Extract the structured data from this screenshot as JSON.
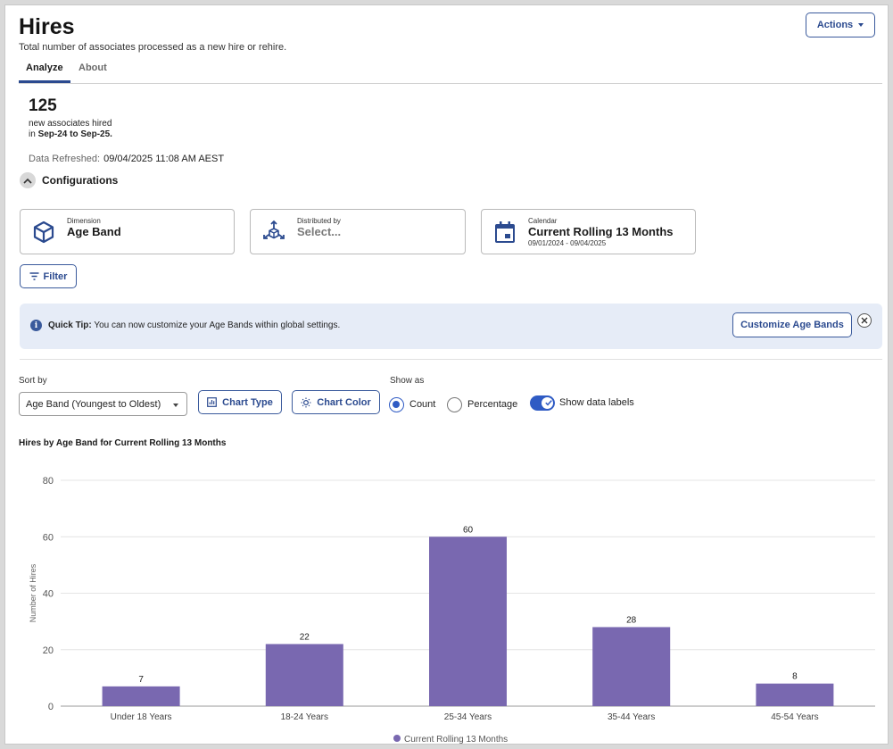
{
  "header": {
    "title": "Hires",
    "subtitle": "Total number of associates processed as a new hire or rehire.",
    "actions_label": "Actions"
  },
  "tabs": [
    {
      "label": "Analyze",
      "active": true
    },
    {
      "label": "About",
      "active": false
    }
  ],
  "summary": {
    "count": "125",
    "line1": "new associates hired",
    "line2_prefix": "in ",
    "line2_range": "Sep-24 to Sep-25."
  },
  "refresh": {
    "label": "Data Refreshed:",
    "value": "09/04/2025 11:08 AM AEST"
  },
  "configurations": {
    "label": "Configurations",
    "dimension": {
      "small_label": "Dimension",
      "value": "Age Band"
    },
    "distributed_by": {
      "small_label": "Distributed by",
      "value": "Select..."
    },
    "calendar": {
      "small_label": "Calendar",
      "value": "Current Rolling 13 Months",
      "range": "09/01/2024 - 09/04/2025"
    }
  },
  "filter_label": "Filter",
  "quick_tip": {
    "prefix": "Quick Tip:",
    "message": " You can now customize your Age Bands within global settings.",
    "button_label": "Customize Age Bands"
  },
  "controls": {
    "sort_label": "Sort by",
    "sort_value": "Age Band (Youngest to Oldest)",
    "chart_type_label": "Chart Type",
    "chart_color_label": "Chart Color",
    "show_as_label": "Show as",
    "count_label": "Count",
    "percentage_label": "Percentage",
    "show_data_labels_label": "Show data labels",
    "selected_show_as": "Count",
    "data_labels_on": true
  },
  "colors": {
    "accent": "#2f5bc4",
    "brand": "#2b4a8f",
    "bar": "#7968b0"
  },
  "chart_data": {
    "type": "bar",
    "title": "Hires by Age Band for Current Rolling 13 Months",
    "categories": [
      "Under 18 Years",
      "18-24 Years",
      "25-34 Years",
      "35-44 Years",
      "45-54 Years"
    ],
    "series": [
      {
        "name": "Current Rolling 13 Months",
        "values": [
          7,
          22,
          60,
          28,
          8
        ]
      }
    ],
    "ylabel": "Number of Hires",
    "xlabel": "",
    "ylim": [
      0,
      80
    ],
    "yticks": [
      0,
      20,
      40,
      60,
      80
    ],
    "grid": true,
    "legend_position": "bottom-center",
    "data_labels": true
  }
}
